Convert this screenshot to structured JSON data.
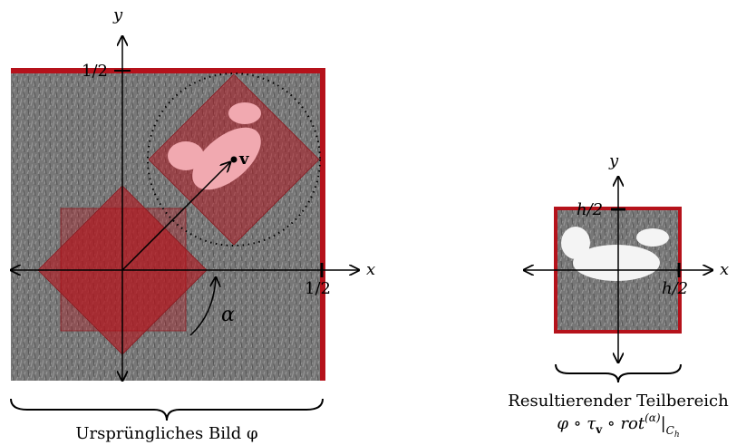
{
  "left": {
    "axis_x": "x",
    "axis_y": "y",
    "tick_x": "1/2",
    "tick_y": "1/2",
    "vector": "v",
    "angle": "α",
    "caption": "Ursprüngliches Bild φ"
  },
  "right": {
    "axis_x": "x",
    "axis_y": "y",
    "tick_x": "h/2",
    "tick_y": "h/2",
    "caption_line1": "Resultierender Teilbereich",
    "caption_line2": [
      "φ ∘ τ",
      "v",
      " ∘ rot",
      "(α)",
      "|",
      "C",
      "h"
    ]
  }
}
